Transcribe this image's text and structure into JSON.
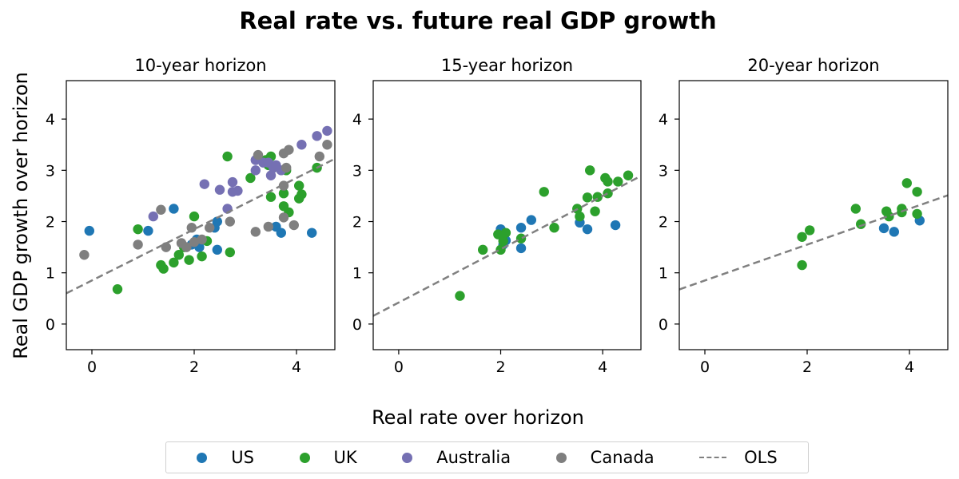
{
  "title": "Real rate vs. future real GDP growth",
  "chart_data": {
    "type": "scatter",
    "title": "Real rate vs. future real GDP growth",
    "xlabel": "Real rate over horizon",
    "ylabel": "Real GDP growth over horizon",
    "xlim": [
      -0.5,
      4.75
    ],
    "ylim": [
      -0.5,
      4.75
    ],
    "xticks": [
      0,
      2,
      4
    ],
    "yticks": [
      0,
      1,
      2,
      3,
      4
    ],
    "grid": false,
    "legend_position": "bottom-center",
    "legend": [
      {
        "name": "US",
        "color": "#1f77b4",
        "kind": "dot"
      },
      {
        "name": "UK",
        "color": "#2ca02c",
        "kind": "dot"
      },
      {
        "name": "Australia",
        "color": "#7570b3",
        "kind": "dot"
      },
      {
        "name": "Canada",
        "color": "#7f7f7f",
        "kind": "dot"
      },
      {
        "name": "OLS",
        "color": "#808080",
        "kind": "dashed-line"
      }
    ],
    "panels": [
      {
        "title": "10-year horizon",
        "ols": {
          "intercept": 0.85,
          "slope": 0.5
        },
        "series": [
          {
            "name": "US",
            "color": "#1f77b4",
            "points": [
              [
                -0.05,
                1.82
              ],
              [
                1.1,
                1.82
              ],
              [
                1.6,
                2.25
              ],
              [
                1.95,
                1.55
              ],
              [
                2.05,
                1.65
              ],
              [
                2.1,
                1.5
              ],
              [
                2.4,
                1.88
              ],
              [
                2.45,
                1.45
              ],
              [
                2.45,
                2.0
              ],
              [
                3.6,
                1.9
              ],
              [
                3.7,
                1.78
              ],
              [
                4.3,
                1.78
              ]
            ]
          },
          {
            "name": "UK",
            "color": "#2ca02c",
            "points": [
              [
                0.5,
                0.68
              ],
              [
                0.9,
                1.85
              ],
              [
                1.35,
                1.15
              ],
              [
                1.4,
                1.08
              ],
              [
                1.6,
                1.2
              ],
              [
                1.7,
                1.35
              ],
              [
                1.8,
                1.5
              ],
              [
                1.9,
                1.25
              ],
              [
                2.0,
                2.1
              ],
              [
                2.15,
                1.32
              ],
              [
                2.25,
                1.62
              ],
              [
                2.7,
                1.4
              ],
              [
                2.65,
                3.27
              ],
              [
                3.1,
                2.85
              ],
              [
                3.4,
                3.2
              ],
              [
                3.45,
                3.1
              ],
              [
                3.5,
                3.27
              ],
              [
                3.55,
                3.05
              ],
              [
                3.5,
                2.48
              ],
              [
                3.75,
                2.55
              ],
              [
                3.75,
                2.3
              ],
              [
                3.85,
                2.18
              ],
              [
                3.8,
                3.0
              ],
              [
                4.05,
                2.45
              ],
              [
                4.05,
                2.7
              ],
              [
                4.1,
                2.53
              ],
              [
                4.4,
                3.05
              ]
            ]
          },
          {
            "name": "Australia",
            "color": "#7570b3",
            "points": [
              [
                1.2,
                2.1
              ],
              [
                2.2,
                2.73
              ],
              [
                2.5,
                2.62
              ],
              [
                2.65,
                2.25
              ],
              [
                2.75,
                2.58
              ],
              [
                2.75,
                2.77
              ],
              [
                2.85,
                2.6
              ],
              [
                3.2,
                3.0
              ],
              [
                3.2,
                3.2
              ],
              [
                3.35,
                3.15
              ],
              [
                3.45,
                3.15
              ],
              [
                3.5,
                2.9
              ],
              [
                3.55,
                3.05
              ],
              [
                3.6,
                3.1
              ],
              [
                3.7,
                3.0
              ],
              [
                4.1,
                3.5
              ],
              [
                4.4,
                3.67
              ],
              [
                4.6,
                3.77
              ]
            ]
          },
          {
            "name": "Canada",
            "color": "#7f7f7f",
            "points": [
              [
                -0.15,
                1.35
              ],
              [
                0.9,
                1.55
              ],
              [
                1.35,
                2.23
              ],
              [
                1.45,
                1.5
              ],
              [
                1.75,
                1.58
              ],
              [
                1.85,
                1.5
              ],
              [
                1.95,
                1.88
              ],
              [
                2.0,
                1.6
              ],
              [
                2.15,
                1.65
              ],
              [
                2.3,
                1.88
              ],
              [
                2.7,
                2.0
              ],
              [
                3.2,
                1.8
              ],
              [
                3.25,
                3.3
              ],
              [
                3.45,
                1.9
              ],
              [
                3.75,
                2.7
              ],
              [
                3.75,
                2.08
              ],
              [
                3.75,
                3.33
              ],
              [
                3.8,
                3.05
              ],
              [
                3.85,
                3.4
              ],
              [
                3.95,
                1.93
              ],
              [
                4.45,
                3.27
              ],
              [
                4.6,
                3.5
              ]
            ]
          }
        ]
      },
      {
        "title": "15-year horizon",
        "ols": {
          "intercept": 0.42,
          "slope": 0.52
        },
        "series": [
          {
            "name": "US",
            "color": "#1f77b4",
            "points": [
              [
                2.0,
                1.85
              ],
              [
                2.05,
                1.55
              ],
              [
                2.1,
                1.63
              ],
              [
                2.4,
                1.48
              ],
              [
                2.4,
                1.88
              ],
              [
                2.6,
                2.03
              ],
              [
                3.55,
                1.98
              ],
              [
                3.7,
                1.85
              ],
              [
                4.25,
                1.93
              ]
            ]
          },
          {
            "name": "UK",
            "color": "#2ca02c",
            "points": [
              [
                1.2,
                0.55
              ],
              [
                1.65,
                1.45
              ],
              [
                1.95,
                1.75
              ],
              [
                2.0,
                1.45
              ],
              [
                2.05,
                1.62
              ],
              [
                2.1,
                1.78
              ],
              [
                2.4,
                1.67
              ],
              [
                2.85,
                2.58
              ],
              [
                3.05,
                1.88
              ],
              [
                3.5,
                2.25
              ],
              [
                3.55,
                2.1
              ],
              [
                3.7,
                2.47
              ],
              [
                3.75,
                3.0
              ],
              [
                3.85,
                2.2
              ],
              [
                3.9,
                2.48
              ],
              [
                4.05,
                2.85
              ],
              [
                4.1,
                2.55
              ],
              [
                4.1,
                2.78
              ],
              [
                4.3,
                2.78
              ],
              [
                4.5,
                2.9
              ]
            ]
          }
        ]
      },
      {
        "title": "20-year horizon",
        "ols": {
          "intercept": 0.85,
          "slope": 0.35
        },
        "series": [
          {
            "name": "US",
            "color": "#1f77b4",
            "points": [
              [
                3.5,
                1.87
              ],
              [
                3.7,
                1.8
              ],
              [
                4.2,
                2.02
              ]
            ]
          },
          {
            "name": "UK",
            "color": "#2ca02c",
            "points": [
              [
                1.9,
                1.15
              ],
              [
                1.9,
                1.7
              ],
              [
                2.05,
                1.83
              ],
              [
                2.95,
                2.25
              ],
              [
                3.05,
                1.95
              ],
              [
                3.55,
                2.2
              ],
              [
                3.6,
                2.1
              ],
              [
                3.85,
                2.25
              ],
              [
                3.85,
                2.18
              ],
              [
                3.95,
                2.75
              ],
              [
                4.15,
                2.15
              ],
              [
                4.15,
                2.58
              ]
            ]
          }
        ]
      }
    ]
  }
}
